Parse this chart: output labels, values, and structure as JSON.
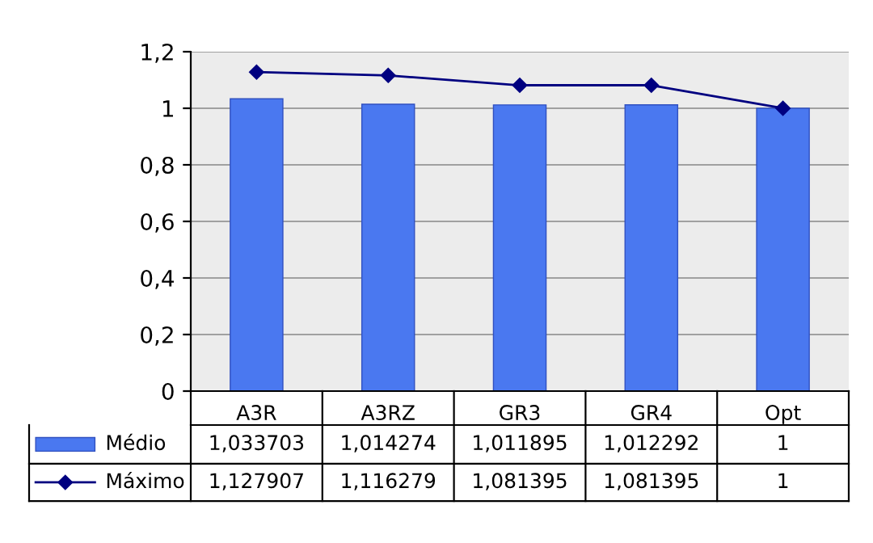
{
  "chart_data": {
    "type": "bar",
    "categories": [
      "A3R",
      "A3RZ",
      "GR3",
      "GR4",
      "Opt"
    ],
    "series": [
      {
        "name": "Médio",
        "color": "#4a78f0",
        "values": [
          1.033703,
          1.014274,
          1.011895,
          1.012292,
          1
        ],
        "value_labels": [
          "1,033703",
          "1,014274",
          "1,011895",
          "1,012292",
          "1"
        ]
      },
      {
        "name": "Máximo",
        "type": "line",
        "color": "#000080",
        "marker": "diamond",
        "values": [
          1.127907,
          1.116279,
          1.081395,
          1.081395,
          1
        ],
        "value_labels": [
          "1,127907",
          "1,116279",
          "1,081395",
          "1,081395",
          "1"
        ]
      }
    ],
    "ylim": [
      0,
      1.2
    ],
    "yticks": [
      0,
      {
        "value": 0.2,
        "label": "0,2"
      },
      {
        "value": 0.4,
        "label": "0,4"
      },
      {
        "value": 0.6,
        "label": "0,6"
      },
      {
        "value": 0.8,
        "label": "0,8"
      },
      1,
      {
        "value": 1.2,
        "label": "1,2"
      }
    ],
    "grid": "y",
    "legend": "bottom"
  }
}
